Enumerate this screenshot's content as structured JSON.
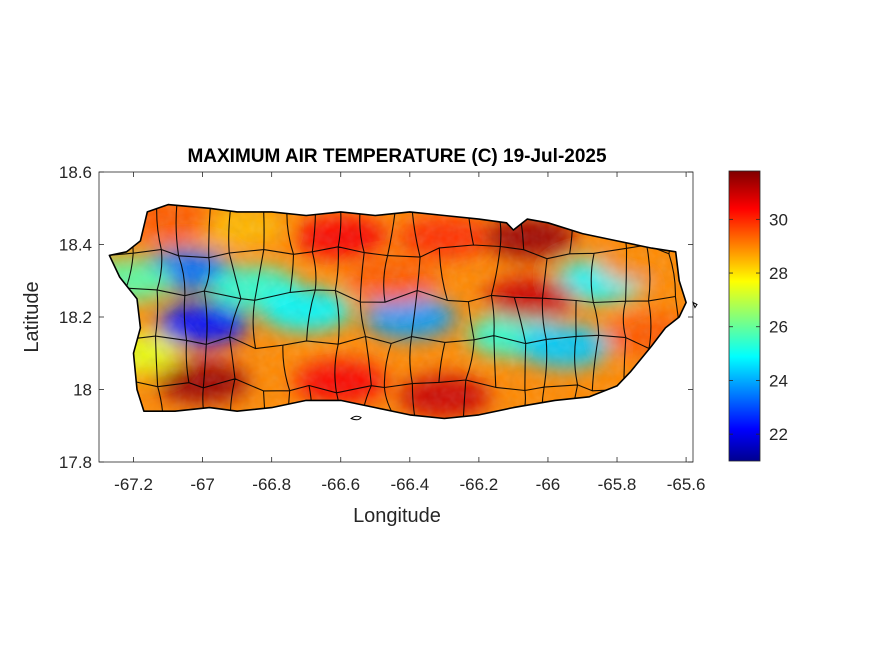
{
  "chart_data": {
    "type": "heatmap",
    "title": "MAXIMUM AIR TEMPERATURE (C) 19-Jul-2025",
    "xlabel": "Longitude",
    "ylabel": "Latitude",
    "xlim": [
      -67.3,
      -65.58
    ],
    "ylim": [
      17.8,
      18.6
    ],
    "x_ticks": [
      -67.2,
      -67,
      -66.8,
      -66.6,
      -66.4,
      -66.2,
      -66,
      -65.8,
      -65.6
    ],
    "x_tick_labels": [
      "-67.2",
      "-67",
      "-66.8",
      "-66.6",
      "-66.4",
      "-66.2",
      "-66",
      "-65.8",
      "-65.6"
    ],
    "y_ticks": [
      17.8,
      18,
      18.2,
      18.4,
      18.6
    ],
    "y_tick_labels": [
      "17.8",
      "18",
      "18.2",
      "18.4",
      "18.6"
    ],
    "colorbar": {
      "colormap": "jet",
      "range": [
        21,
        31.8
      ],
      "ticks": [
        22,
        24,
        26,
        28,
        30
      ],
      "tick_labels": [
        "22",
        "24",
        "26",
        "28",
        "30"
      ]
    },
    "grid": false,
    "regions": [
      {
        "lon": -67.05,
        "lat": 18.33,
        "value": 23.5
      },
      {
        "lon": -66.85,
        "lat": 18.28,
        "value": 25.5
      },
      {
        "lon": -67.0,
        "lat": 18.18,
        "value": 22.5
      },
      {
        "lon": -66.7,
        "lat": 18.22,
        "value": 25.0
      },
      {
        "lon": -66.4,
        "lat": 18.2,
        "value": 24.0
      },
      {
        "lon": -66.1,
        "lat": 18.15,
        "value": 25.5
      },
      {
        "lon": -65.95,
        "lat": 18.12,
        "value": 24.5
      },
      {
        "lon": -65.85,
        "lat": 18.3,
        "value": 25.0
      },
      {
        "lon": -66.6,
        "lat": 18.42,
        "value": 30.5
      },
      {
        "lon": -66.3,
        "lat": 18.42,
        "value": 30.0
      },
      {
        "lon": -66.05,
        "lat": 18.42,
        "value": 31.5
      },
      {
        "lon": -66.05,
        "lat": 18.25,
        "value": 31.0
      },
      {
        "lon": -66.9,
        "lat": 18.45,
        "value": 28.5
      },
      {
        "lon": -67.1,
        "lat": 18.47,
        "value": 29.5
      },
      {
        "lon": -67.0,
        "lat": 18.02,
        "value": 31.5
      },
      {
        "lon": -66.6,
        "lat": 18.02,
        "value": 30.5
      },
      {
        "lon": -66.3,
        "lat": 17.98,
        "value": 31.0
      },
      {
        "lon": -65.7,
        "lat": 18.15,
        "value": 29.5
      },
      {
        "lon": -65.72,
        "lat": 18.35,
        "value": 29.0
      },
      {
        "lon": -67.2,
        "lat": 18.1,
        "value": 27.5
      },
      {
        "lon": -67.22,
        "lat": 18.3,
        "value": 26.0
      },
      {
        "lon": -66.45,
        "lat": 18.3,
        "value": 29.5
      }
    ]
  }
}
